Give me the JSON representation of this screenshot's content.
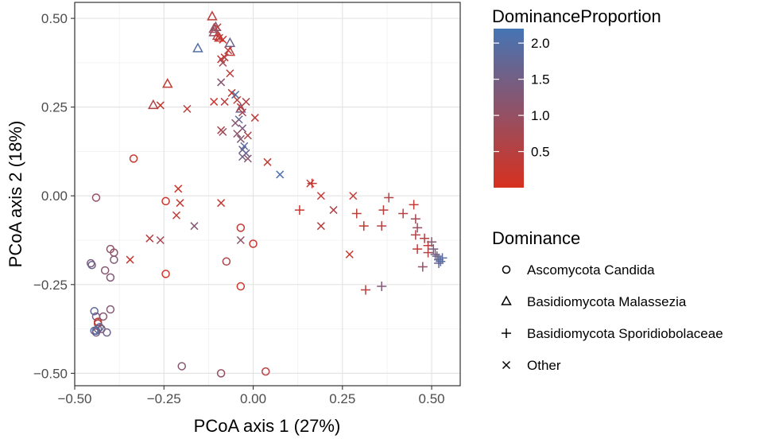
{
  "chart_data": {
    "type": "scatter",
    "xlabel": "PCoA axis 1 (27%)",
    "ylabel": "PCoA axis 2 (18%)",
    "xlim": [
      -0.5,
      0.58
    ],
    "ylim": [
      -0.535,
      0.545
    ],
    "x_ticks": [
      -0.5,
      -0.25,
      0.0,
      0.25,
      0.5
    ],
    "x_tick_labels": [
      "−0.50",
      "−0.25",
      "0.00",
      "0.25",
      "0.50"
    ],
    "y_ticks": [
      -0.5,
      -0.25,
      0.0,
      0.25,
      0.5
    ],
    "y_tick_labels": [
      "−0.50",
      "−0.25",
      "0.00",
      "0.25",
      "0.50"
    ],
    "grid": true,
    "color_scale": {
      "title": "DominanceProportion",
      "min": 0,
      "max": 2.2,
      "low_color": "#d7301f",
      "high_color": "#4575b4",
      "ticks": [
        0.5,
        1.0,
        1.5,
        2.0
      ],
      "tick_labels": [
        "0.5",
        "1.0",
        "1.5",
        "2.0"
      ]
    },
    "shape_legend": {
      "title": "Dominance",
      "entries": [
        {
          "shape": "circle",
          "label": "Ascomycota Candida"
        },
        {
          "shape": "triangle",
          "label": "Basidiomycota Malassezia"
        },
        {
          "shape": "plus",
          "label": "Basidiomycota Sporidiobolaceae"
        },
        {
          "shape": "cross",
          "label": "Other"
        }
      ]
    },
    "points": [
      {
        "x": -0.455,
        "y": -0.19,
        "shape": "circle",
        "v": 1.4
      },
      {
        "x": -0.452,
        "y": -0.195,
        "shape": "circle",
        "v": 1.6
      },
      {
        "x": -0.44,
        "y": -0.005,
        "shape": "circle",
        "v": 1.0
      },
      {
        "x": -0.415,
        "y": -0.21,
        "shape": "circle",
        "v": 1.2
      },
      {
        "x": -0.4,
        "y": -0.23,
        "shape": "circle",
        "v": 1.3
      },
      {
        "x": -0.4,
        "y": -0.15,
        "shape": "circle",
        "v": 1.1
      },
      {
        "x": -0.39,
        "y": -0.16,
        "shape": "circle",
        "v": 1.0
      },
      {
        "x": -0.39,
        "y": -0.18,
        "shape": "circle",
        "v": 1.3
      },
      {
        "x": -0.445,
        "y": -0.325,
        "shape": "circle",
        "v": 1.8
      },
      {
        "x": -0.44,
        "y": -0.34,
        "shape": "circle",
        "v": 1.5
      },
      {
        "x": -0.435,
        "y": -0.355,
        "shape": "circle",
        "v": 0.3
      },
      {
        "x": -0.435,
        "y": -0.36,
        "shape": "circle",
        "v": 0.5
      },
      {
        "x": -0.42,
        "y": -0.34,
        "shape": "circle",
        "v": 1.2
      },
      {
        "x": -0.425,
        "y": -0.375,
        "shape": "circle",
        "v": 1.1
      },
      {
        "x": -0.4,
        "y": -0.32,
        "shape": "circle",
        "v": 1.3
      },
      {
        "x": -0.445,
        "y": -0.38,
        "shape": "circle",
        "v": 1.9
      },
      {
        "x": -0.44,
        "y": -0.38,
        "shape": "circle",
        "v": 2.0
      },
      {
        "x": -0.435,
        "y": -0.375,
        "shape": "circle",
        "v": 1.7
      },
      {
        "x": -0.43,
        "y": -0.37,
        "shape": "circle",
        "v": 1.8
      },
      {
        "x": -0.41,
        "y": -0.385,
        "shape": "circle",
        "v": 1.6
      },
      {
        "x": -0.44,
        "y": -0.385,
        "shape": "circle",
        "v": 1.4
      },
      {
        "x": -0.335,
        "y": 0.105,
        "shape": "circle",
        "v": 0.2
      },
      {
        "x": -0.245,
        "y": -0.015,
        "shape": "circle",
        "v": 0.2
      },
      {
        "x": -0.245,
        "y": -0.22,
        "shape": "circle",
        "v": 0.1
      },
      {
        "x": -0.2,
        "y": -0.48,
        "shape": "circle",
        "v": 1.2
      },
      {
        "x": -0.09,
        "y": -0.5,
        "shape": "circle",
        "v": 1.0
      },
      {
        "x": 0.035,
        "y": -0.495,
        "shape": "circle",
        "v": 0.5
      },
      {
        "x": -0.075,
        "y": -0.185,
        "shape": "circle",
        "v": 0.6
      },
      {
        "x": -0.035,
        "y": -0.09,
        "shape": "circle",
        "v": 0.3
      },
      {
        "x": -0.035,
        "y": -0.255,
        "shape": "circle",
        "v": 0.2
      },
      {
        "x": 0.0,
        "y": -0.135,
        "shape": "circle",
        "v": 0.2
      },
      {
        "x": -0.115,
        "y": 0.505,
        "shape": "triangle",
        "v": 0.4
      },
      {
        "x": -0.11,
        "y": 0.47,
        "shape": "triangle",
        "v": 0.8
      },
      {
        "x": -0.105,
        "y": 0.475,
        "shape": "triangle",
        "v": 1.2
      },
      {
        "x": -0.11,
        "y": 0.46,
        "shape": "triangle",
        "v": 1.0
      },
      {
        "x": -0.1,
        "y": 0.45,
        "shape": "triangle",
        "v": 0.6
      },
      {
        "x": -0.095,
        "y": 0.445,
        "shape": "triangle",
        "v": 0.3
      },
      {
        "x": -0.065,
        "y": 0.43,
        "shape": "triangle",
        "v": 1.6
      },
      {
        "x": -0.155,
        "y": 0.415,
        "shape": "triangle",
        "v": 2.0
      },
      {
        "x": -0.065,
        "y": 0.405,
        "shape": "triangle",
        "v": 0.4
      },
      {
        "x": -0.24,
        "y": 0.315,
        "shape": "triangle",
        "v": 0.3
      },
      {
        "x": -0.28,
        "y": 0.255,
        "shape": "triangle",
        "v": 0.6
      },
      {
        "x": -0.035,
        "y": 0.245,
        "shape": "triangle",
        "v": 1.5
      },
      {
        "x": -0.1,
        "y": 0.475,
        "shape": "cross",
        "v": 0.5
      },
      {
        "x": -0.095,
        "y": 0.445,
        "shape": "cross",
        "v": 0.3
      },
      {
        "x": -0.085,
        "y": 0.44,
        "shape": "cross",
        "v": 0.2
      },
      {
        "x": -0.07,
        "y": 0.41,
        "shape": "cross",
        "v": 0.4
      },
      {
        "x": -0.09,
        "y": 0.385,
        "shape": "cross",
        "v": 0.3
      },
      {
        "x": -0.08,
        "y": 0.39,
        "shape": "cross",
        "v": 0.5
      },
      {
        "x": -0.085,
        "y": 0.375,
        "shape": "cross",
        "v": 0.8
      },
      {
        "x": -0.09,
        "y": 0.32,
        "shape": "cross",
        "v": 1.2
      },
      {
        "x": -0.065,
        "y": 0.345,
        "shape": "cross",
        "v": 0.4
      },
      {
        "x": -0.06,
        "y": 0.29,
        "shape": "cross",
        "v": 0.3
      },
      {
        "x": -0.05,
        "y": 0.285,
        "shape": "cross",
        "v": 2.0
      },
      {
        "x": -0.045,
        "y": 0.27,
        "shape": "cross",
        "v": 0.5
      },
      {
        "x": -0.035,
        "y": 0.25,
        "shape": "cross",
        "v": 0.4
      },
      {
        "x": -0.02,
        "y": 0.265,
        "shape": "cross",
        "v": 0.6
      },
      {
        "x": -0.03,
        "y": 0.235,
        "shape": "cross",
        "v": 0.8
      },
      {
        "x": -0.04,
        "y": 0.215,
        "shape": "cross",
        "v": 1.8
      },
      {
        "x": -0.05,
        "y": 0.205,
        "shape": "cross",
        "v": 1.2
      },
      {
        "x": -0.03,
        "y": 0.19,
        "shape": "cross",
        "v": 1.4
      },
      {
        "x": -0.045,
        "y": 0.175,
        "shape": "cross",
        "v": 1.1
      },
      {
        "x": -0.035,
        "y": 0.16,
        "shape": "cross",
        "v": 1.3
      },
      {
        "x": -0.03,
        "y": 0.13,
        "shape": "cross",
        "v": 1.6
      },
      {
        "x": -0.025,
        "y": 0.14,
        "shape": "cross",
        "v": 1.9
      },
      {
        "x": -0.02,
        "y": 0.12,
        "shape": "cross",
        "v": 1.7
      },
      {
        "x": -0.03,
        "y": 0.11,
        "shape": "cross",
        "v": 1.5
      },
      {
        "x": -0.015,
        "y": 0.105,
        "shape": "cross",
        "v": 1.2
      },
      {
        "x": -0.015,
        "y": 0.17,
        "shape": "cross",
        "v": 0.6
      },
      {
        "x": 0.005,
        "y": 0.22,
        "shape": "cross",
        "v": 0.4
      },
      {
        "x": -0.085,
        "y": 0.18,
        "shape": "cross",
        "v": 1.0
      },
      {
        "x": -0.09,
        "y": 0.185,
        "shape": "cross",
        "v": 0.7
      },
      {
        "x": -0.185,
        "y": 0.245,
        "shape": "cross",
        "v": 0.4
      },
      {
        "x": -0.26,
        "y": 0.255,
        "shape": "cross",
        "v": 0.3
      },
      {
        "x": -0.11,
        "y": 0.265,
        "shape": "cross",
        "v": 0.2
      },
      {
        "x": -0.08,
        "y": 0.265,
        "shape": "cross",
        "v": 0.5
      },
      {
        "x": 0.04,
        "y": 0.095,
        "shape": "cross",
        "v": 0.3
      },
      {
        "x": 0.075,
        "y": 0.06,
        "shape": "cross",
        "v": 2.1
      },
      {
        "x": 0.16,
        "y": 0.035,
        "shape": "cross",
        "v": 0.4
      },
      {
        "x": 0.19,
        "y": 0.0,
        "shape": "cross",
        "v": 0.3
      },
      {
        "x": 0.225,
        "y": -0.04,
        "shape": "cross",
        "v": 0.6
      },
      {
        "x": 0.19,
        "y": -0.085,
        "shape": "cross",
        "v": 0.5
      },
      {
        "x": 0.28,
        "y": 0.0,
        "shape": "cross",
        "v": 0.3
      },
      {
        "x": 0.27,
        "y": -0.165,
        "shape": "cross",
        "v": 0.2
      },
      {
        "x": -0.21,
        "y": 0.02,
        "shape": "cross",
        "v": 0.2
      },
      {
        "x": -0.205,
        "y": -0.02,
        "shape": "cross",
        "v": 0.3
      },
      {
        "x": -0.215,
        "y": -0.055,
        "shape": "cross",
        "v": 0.3
      },
      {
        "x": -0.165,
        "y": -0.085,
        "shape": "cross",
        "v": 1.3
      },
      {
        "x": -0.09,
        "y": -0.02,
        "shape": "cross",
        "v": 0.3
      },
      {
        "x": -0.29,
        "y": -0.12,
        "shape": "cross",
        "v": 0.5
      },
      {
        "x": -0.26,
        "y": -0.125,
        "shape": "cross",
        "v": 0.8
      },
      {
        "x": -0.345,
        "y": -0.18,
        "shape": "cross",
        "v": 0.3
      },
      {
        "x": -0.035,
        "y": -0.125,
        "shape": "cross",
        "v": 1.1
      },
      {
        "x": 0.13,
        "y": -0.04,
        "shape": "plus",
        "v": 0.2
      },
      {
        "x": 0.165,
        "y": 0.035,
        "shape": "plus",
        "v": 0.3
      },
      {
        "x": 0.29,
        "y": -0.05,
        "shape": "plus",
        "v": 0.4
      },
      {
        "x": 0.31,
        "y": -0.085,
        "shape": "plus",
        "v": 0.3
      },
      {
        "x": 0.36,
        "y": -0.085,
        "shape": "plus",
        "v": 0.5
      },
      {
        "x": 0.365,
        "y": -0.04,
        "shape": "plus",
        "v": 0.4
      },
      {
        "x": 0.38,
        "y": -0.005,
        "shape": "plus",
        "v": 0.6
      },
      {
        "x": 0.315,
        "y": -0.265,
        "shape": "plus",
        "v": 0.4
      },
      {
        "x": 0.36,
        "y": -0.255,
        "shape": "plus",
        "v": 1.3
      },
      {
        "x": 0.42,
        "y": -0.05,
        "shape": "plus",
        "v": 0.5
      },
      {
        "x": 0.45,
        "y": -0.025,
        "shape": "plus",
        "v": 0.3
      },
      {
        "x": 0.455,
        "y": -0.065,
        "shape": "plus",
        "v": 0.8
      },
      {
        "x": 0.46,
        "y": -0.09,
        "shape": "plus",
        "v": 0.9
      },
      {
        "x": 0.455,
        "y": -0.11,
        "shape": "plus",
        "v": 0.6
      },
      {
        "x": 0.46,
        "y": -0.15,
        "shape": "plus",
        "v": 0.3
      },
      {
        "x": 0.48,
        "y": -0.12,
        "shape": "plus",
        "v": 0.5
      },
      {
        "x": 0.49,
        "y": -0.14,
        "shape": "plus",
        "v": 0.4
      },
      {
        "x": 0.49,
        "y": -0.16,
        "shape": "plus",
        "v": 0.6
      },
      {
        "x": 0.5,
        "y": -0.13,
        "shape": "plus",
        "v": 1.2
      },
      {
        "x": 0.505,
        "y": -0.15,
        "shape": "plus",
        "v": 1.4
      },
      {
        "x": 0.51,
        "y": -0.165,
        "shape": "plus",
        "v": 1.5
      },
      {
        "x": 0.515,
        "y": -0.17,
        "shape": "plus",
        "v": 1.6
      },
      {
        "x": 0.52,
        "y": -0.18,
        "shape": "plus",
        "v": 1.8
      },
      {
        "x": 0.525,
        "y": -0.185,
        "shape": "plus",
        "v": 2.0
      },
      {
        "x": 0.53,
        "y": -0.175,
        "shape": "plus",
        "v": 1.9
      },
      {
        "x": 0.475,
        "y": -0.2,
        "shape": "plus",
        "v": 1.0
      },
      {
        "x": 0.52,
        "y": -0.19,
        "shape": "plus",
        "v": 1.7
      }
    ]
  }
}
